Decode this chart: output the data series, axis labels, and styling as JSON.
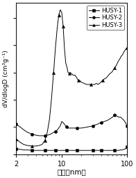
{
  "title": "",
  "xlabel": "介孔（nm）",
  "ylabel": "dV/dlogD (cm³g⁻¹)",
  "xlim": [
    2,
    100
  ],
  "background_color": "#ffffff",
  "legend_entries": [
    "HUSY-1",
    "HUSY-2",
    "HUSY-3"
  ],
  "markers": [
    "s",
    "o",
    "^"
  ],
  "colors": [
    "black",
    "black",
    "black"
  ],
  "series": {
    "HUSY-1": {
      "x": [
        2.0,
        2.3,
        2.6,
        3.0,
        3.5,
        4.0,
        4.5,
        5.0,
        5.5,
        6.0,
        6.5,
        7.0,
        7.5,
        8.0,
        8.5,
        9.0,
        9.5,
        10.0,
        11.0,
        12.0,
        13.0,
        14.0,
        15.0,
        17.0,
        20.0,
        25.0,
        30.0,
        35.0,
        40.0,
        45.0,
        50.0,
        55.0,
        60.0,
        65.0,
        70.0,
        75.0,
        80.0,
        85.0,
        90.0,
        95.0,
        100.0
      ],
      "y": [
        0.01,
        0.009,
        0.008,
        0.008,
        0.007,
        0.007,
        0.007,
        0.007,
        0.007,
        0.007,
        0.007,
        0.007,
        0.007,
        0.007,
        0.007,
        0.007,
        0.007,
        0.007,
        0.007,
        0.007,
        0.007,
        0.007,
        0.007,
        0.007,
        0.007,
        0.007,
        0.007,
        0.007,
        0.007,
        0.007,
        0.007,
        0.007,
        0.007,
        0.007,
        0.007,
        0.007,
        0.008,
        0.008,
        0.009,
        0.01,
        0.014
      ]
    },
    "HUSY-2": {
      "x": [
        2.0,
        2.3,
        2.6,
        3.0,
        3.5,
        4.0,
        4.5,
        5.0,
        5.5,
        6.0,
        6.5,
        7.0,
        7.5,
        8.0,
        8.5,
        9.0,
        9.5,
        10.0,
        10.5,
        11.0,
        11.5,
        12.0,
        12.5,
        13.0,
        14.0,
        15.0,
        17.0,
        20.0,
        25.0,
        30.0,
        35.0,
        40.0,
        45.0,
        50.0,
        55.0,
        60.0,
        65.0,
        70.0,
        75.0,
        80.0,
        85.0,
        90.0,
        95.0,
        100.0
      ],
      "y": [
        0.055,
        0.05,
        0.045,
        0.04,
        0.037,
        0.035,
        0.034,
        0.034,
        0.034,
        0.035,
        0.036,
        0.038,
        0.04,
        0.042,
        0.044,
        0.048,
        0.052,
        0.06,
        0.058,
        0.055,
        0.052,
        0.05,
        0.048,
        0.048,
        0.048,
        0.048,
        0.048,
        0.048,
        0.05,
        0.052,
        0.055,
        0.058,
        0.06,
        0.062,
        0.065,
        0.068,
        0.072,
        0.07,
        0.068,
        0.068,
        0.065,
        0.062,
        0.058,
        0.052
      ]
    },
    "HUSY-3": {
      "x": [
        2.0,
        2.3,
        2.6,
        3.0,
        3.5,
        4.0,
        4.5,
        5.0,
        5.5,
        6.0,
        6.5,
        7.0,
        7.5,
        8.0,
        8.5,
        9.0,
        9.5,
        10.0,
        10.5,
        11.0,
        11.5,
        12.0,
        12.5,
        13.0,
        13.5,
        14.0,
        15.0,
        16.0,
        17.0,
        18.0,
        19.0,
        20.0,
        22.0,
        24.0,
        26.0,
        28.0,
        30.0,
        32.0,
        34.0,
        36.0,
        38.0,
        40.0,
        42.0,
        45.0,
        48.0,
        50.0,
        52.0,
        55.0,
        58.0,
        60.0,
        62.0,
        65.0,
        68.0,
        70.0,
        72.0,
        75.0,
        78.0,
        80.0,
        82.0,
        85.0,
        88.0,
        90.0,
        95.0,
        100.0
      ],
      "y": [
        0.028,
        0.022,
        0.018,
        0.016,
        0.015,
        0.015,
        0.016,
        0.018,
        0.025,
        0.04,
        0.065,
        0.105,
        0.15,
        0.195,
        0.23,
        0.255,
        0.265,
        0.26,
        0.235,
        0.195,
        0.168,
        0.16,
        0.15,
        0.148,
        0.15,
        0.148,
        0.145,
        0.145,
        0.14,
        0.135,
        0.135,
        0.132,
        0.13,
        0.128,
        0.128,
        0.128,
        0.128,
        0.128,
        0.13,
        0.128,
        0.13,
        0.132,
        0.135,
        0.138,
        0.14,
        0.142,
        0.145,
        0.148,
        0.15,
        0.152,
        0.155,
        0.158,
        0.162,
        0.165,
        0.168,
        0.172,
        0.175,
        0.178,
        0.18,
        0.182,
        0.185,
        0.188,
        0.192,
        0.195
      ]
    }
  }
}
